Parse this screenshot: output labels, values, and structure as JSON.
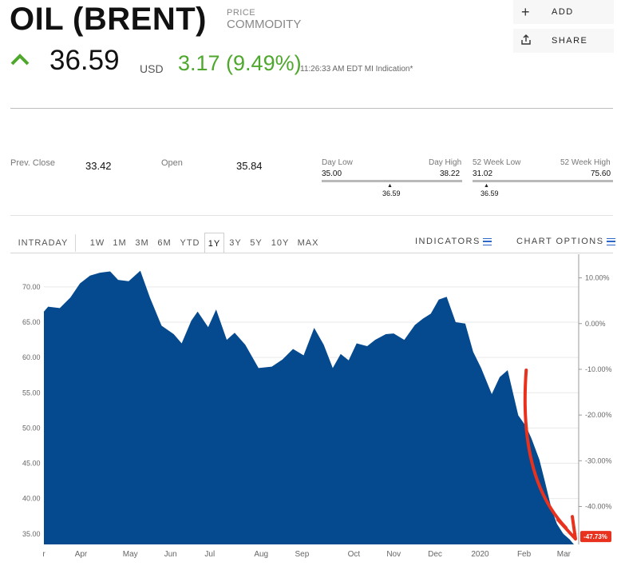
{
  "header": {
    "title": "OIL (BRENT)",
    "subtitle_top": "PRICE",
    "subtitle_bottom": "COMMODITY",
    "price": "36.59",
    "currency": "USD",
    "change": "3.17 (9.49%)",
    "timestamp": "11:26:33 AM EDT MI Indication*",
    "accent_up_color": "#4fa82d"
  },
  "actions": [
    {
      "icon": "plus-icon",
      "label": "ADD"
    },
    {
      "icon": "share-icon",
      "label": "SHARE"
    }
  ],
  "stats": {
    "prev_close_label": "Prev. Close",
    "prev_close": "33.42",
    "open_label": "Open",
    "open": "35.84",
    "day_low_label": "Day Low",
    "day_low": "35.00",
    "day_high_label": "Day High",
    "day_high": "38.22",
    "day_current": "36.59",
    "wk52_low_label": "52 Week Low",
    "wk52_low": "31.02",
    "wk52_high_label": "52 Week High",
    "wk52_high": "75.60",
    "wk52_current": "36.59"
  },
  "tabs": {
    "intraday": "INTRADAY",
    "ranges": [
      "1W",
      "1M",
      "3M",
      "6M",
      "YTD",
      "1Y",
      "3Y",
      "5Y",
      "10Y",
      "MAX"
    ],
    "active": "1Y",
    "indicators_label": "INDICATORS",
    "chart_options_label": "CHART OPTIONS"
  },
  "chart_data": {
    "type": "area",
    "fill_color": "#054a8f",
    "annotation_color": "#e8321e",
    "ylim": [
      33.5,
      73.5
    ],
    "y_ticks": [
      "35.00",
      "40.00",
      "45.00",
      "50.00",
      "55.00",
      "60.00",
      "65.00",
      "70.00"
    ],
    "y_right_ticks": [
      "10.00%",
      "0.00%",
      "-10.00%",
      "-20.00%",
      "-30.00%",
      "-40.00%"
    ],
    "x_labels": [
      "r",
      "Apr",
      "May",
      "Jun",
      "Jul",
      "Aug",
      "Sep",
      "Oct",
      "Nov",
      "Dec",
      "2020",
      "Feb",
      "Mar"
    ],
    "x_label_t": [
      0.0,
      0.07,
      0.163,
      0.239,
      0.313,
      0.41,
      0.487,
      0.585,
      0.66,
      0.738,
      0.823,
      0.906,
      0.981
    ],
    "series": [
      {
        "t": [
          0.0,
          0.008,
          0.03,
          0.05,
          0.068,
          0.087,
          0.105,
          0.125,
          0.14,
          0.16,
          0.182,
          0.2,
          0.222,
          0.245,
          0.26,
          0.278,
          0.29,
          0.31,
          0.325,
          0.345,
          0.36,
          0.38,
          0.405,
          0.43,
          0.45,
          0.47,
          0.49,
          0.51,
          0.528,
          0.545,
          0.56,
          0.575,
          0.59,
          0.61,
          0.625,
          0.645,
          0.66,
          0.68,
          0.7,
          0.715,
          0.73,
          0.745,
          0.76,
          0.777,
          0.795,
          0.81,
          0.825,
          0.845,
          0.86,
          0.875,
          0.895,
          0.91,
          0.92,
          0.935,
          0.945,
          0.958,
          0.968,
          0.98,
          0.992,
          1.0
        ],
        "values": [
          66.5,
          67.2,
          67.0,
          68.5,
          70.5,
          71.6,
          72.0,
          72.2,
          71.0,
          70.8,
          72.3,
          68.5,
          64.5,
          63.3,
          62.0,
          65.2,
          66.5,
          64.3,
          66.8,
          62.5,
          63.5,
          61.8,
          58.5,
          58.7,
          59.7,
          61.2,
          60.3,
          64.2,
          61.8,
          58.5,
          60.5,
          59.6,
          62.0,
          61.6,
          62.5,
          63.3,
          63.4,
          62.5,
          64.6,
          65.5,
          66.2,
          68.2,
          68.6,
          65.0,
          64.8,
          60.8,
          58.5,
          54.8,
          57.2,
          58.2,
          51.8,
          50.2,
          48.5,
          45.5,
          42.5,
          38.5,
          36.4,
          35.0,
          34.2,
          33.5
        ]
      }
    ],
    "badge": "-47.73%",
    "arrow_from_t": 0.91,
    "arrow_from_value": 58.2,
    "arrow_to_t": 1.0,
    "arrow_to_value": 34.5
  }
}
